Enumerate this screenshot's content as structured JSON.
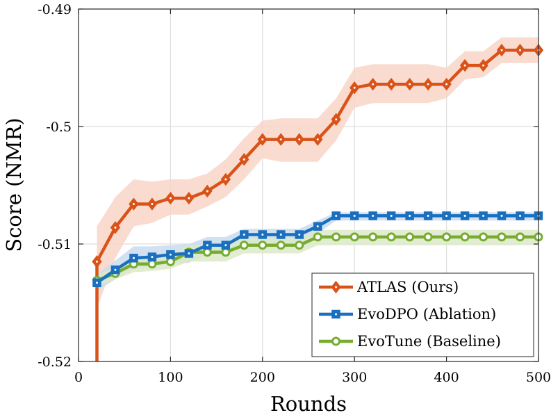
{
  "chart_data": {
    "type": "line",
    "title": "",
    "xlabel": "Rounds",
    "ylabel": "Score (NMR)",
    "xlim": [
      0,
      500
    ],
    "ylim": [
      -0.52,
      -0.49
    ],
    "xticks": [
      0,
      100,
      200,
      300,
      400,
      500
    ],
    "xtick_labels": [
      "0",
      "100",
      "200",
      "300",
      "400",
      "500"
    ],
    "yticks": [
      -0.52,
      -0.51,
      -0.5,
      -0.49
    ],
    "ytick_labels": [
      "-0.52",
      "-0.51",
      "-0.5",
      "-0.49"
    ],
    "grid": true,
    "legend_position": "bottom-right",
    "x": [
      20,
      40,
      60,
      80,
      100,
      120,
      140,
      160,
      180,
      200,
      220,
      240,
      260,
      280,
      300,
      320,
      340,
      360,
      380,
      400,
      420,
      440,
      460,
      480,
      500
    ],
    "series": [
      {
        "name": "ATLAS (Ours)",
        "color": "#d95319",
        "band_color": "#f8d5c8",
        "marker": "diamond",
        "line_start": [
          20,
          -0.52
        ],
        "values": [
          -0.5115,
          -0.5086,
          -0.5066,
          -0.5066,
          -0.5061,
          -0.5061,
          -0.5055,
          -0.5045,
          -0.5028,
          -0.5011,
          -0.5011,
          -0.5011,
          -0.5011,
          -0.4994,
          -0.4967,
          -0.4964,
          -0.4964,
          -0.4964,
          -0.4964,
          -0.4964,
          -0.4948,
          -0.4948,
          -0.4935,
          -0.4935,
          -0.4935
        ],
        "band_lower": [
          -0.5155,
          -0.5112,
          -0.5085,
          -0.5082,
          -0.5075,
          -0.5075,
          -0.5068,
          -0.506,
          -0.5045,
          -0.5027,
          -0.503,
          -0.503,
          -0.503,
          -0.5012,
          -0.4984,
          -0.498,
          -0.498,
          -0.498,
          -0.498,
          -0.4976,
          -0.496,
          -0.4958,
          -0.4946,
          -0.4946,
          -0.4946
        ],
        "band_upper": [
          -0.5085,
          -0.506,
          -0.5045,
          -0.5047,
          -0.5045,
          -0.5045,
          -0.504,
          -0.5028,
          -0.501,
          -0.4995,
          -0.4993,
          -0.4993,
          -0.4993,
          -0.4976,
          -0.495,
          -0.4947,
          -0.4947,
          -0.4947,
          -0.4947,
          -0.495,
          -0.4936,
          -0.4936,
          -0.4924,
          -0.4924,
          -0.4924
        ]
      },
      {
        "name": "EvoDPO (Ablation)",
        "color": "#1a6fbf",
        "band_color": "#c9dcf0",
        "marker": "square",
        "values": [
          -0.5133,
          -0.5122,
          -0.5112,
          -0.5111,
          -0.5109,
          -0.5108,
          -0.5101,
          -0.5101,
          -0.5092,
          -0.5092,
          -0.5092,
          -0.5092,
          -0.5085,
          -0.5076,
          -0.5076,
          -0.5076,
          -0.5076,
          -0.5076,
          -0.5076,
          -0.5076,
          -0.5076,
          -0.5076,
          -0.5076,
          -0.5076,
          -0.5076
        ],
        "band_lower": [
          -0.514,
          -0.513,
          -0.5121,
          -0.5119,
          -0.5117,
          -0.5116,
          -0.5109,
          -0.5109,
          -0.5099,
          -0.5099,
          -0.5099,
          -0.5099,
          -0.5091,
          -0.508,
          -0.508,
          -0.508,
          -0.508,
          -0.508,
          -0.508,
          -0.508,
          -0.508,
          -0.508,
          -0.508,
          -0.508,
          -0.508
        ],
        "band_upper": [
          -0.5126,
          -0.5114,
          -0.5102,
          -0.5102,
          -0.5101,
          -0.51,
          -0.5094,
          -0.5094,
          -0.5087,
          -0.5087,
          -0.5087,
          -0.5087,
          -0.508,
          -0.5073,
          -0.5073,
          -0.5073,
          -0.5073,
          -0.5073,
          -0.5073,
          -0.5073,
          -0.5073,
          -0.5073,
          -0.5073,
          -0.5073,
          -0.5073
        ]
      },
      {
        "name": "EvoTune (Baseline)",
        "color": "#77ac30",
        "band_color": "#dce9c8",
        "marker": "circle",
        "values": [
          -0.5131,
          -0.5125,
          -0.5117,
          -0.5117,
          -0.5115,
          -0.5107,
          -0.5107,
          -0.5107,
          -0.5101,
          -0.5101,
          -0.5101,
          -0.5101,
          -0.5094,
          -0.5094,
          -0.5094,
          -0.5094,
          -0.5094,
          -0.5094,
          -0.5094,
          -0.5094,
          -0.5094,
          -0.5094,
          -0.5094,
          -0.5094,
          -0.5094
        ],
        "band_lower": [
          -0.5136,
          -0.513,
          -0.5124,
          -0.5123,
          -0.5121,
          -0.5115,
          -0.5115,
          -0.5115,
          -0.5108,
          -0.5108,
          -0.5108,
          -0.5108,
          -0.5101,
          -0.5101,
          -0.5101,
          -0.5101,
          -0.5101,
          -0.5101,
          -0.5101,
          -0.5101,
          -0.5101,
          -0.5101,
          -0.5101,
          -0.5101,
          -0.5101
        ],
        "band_upper": [
          -0.5126,
          -0.512,
          -0.5111,
          -0.5111,
          -0.5109,
          -0.5101,
          -0.5101,
          -0.5101,
          -0.5095,
          -0.5095,
          -0.5095,
          -0.5095,
          -0.5088,
          -0.5088,
          -0.5088,
          -0.5088,
          -0.5088,
          -0.5088,
          -0.5088,
          -0.5088,
          -0.5088,
          -0.5088,
          -0.5088,
          -0.5088,
          -0.5088
        ]
      }
    ]
  }
}
